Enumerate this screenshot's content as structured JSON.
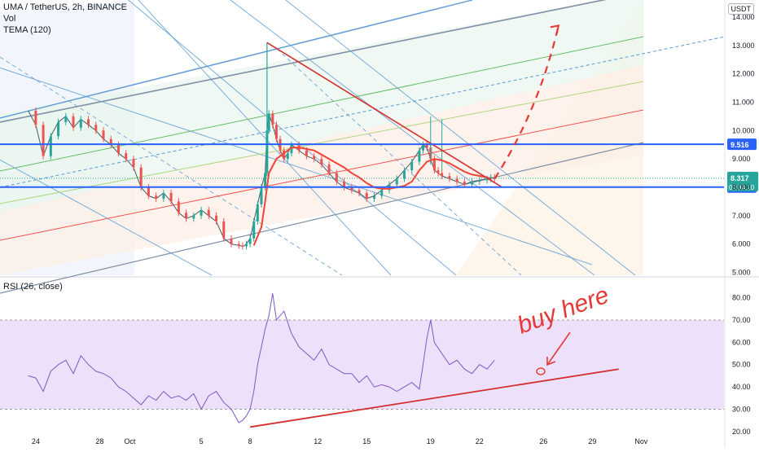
{
  "header": {
    "symbol_line": "UMA / TetherUS, 2h, BINANCE",
    "vol_label": "Vol",
    "indicator_label": "TEMA (120)",
    "currency_badge": "USDT",
    "rsi_label": "RSI (26, close)"
  },
  "annotation": {
    "handwritten_text": "buy here"
  },
  "chart_data": [
    {
      "type": "line",
      "panel": "price",
      "y_axis_ticks": [
        "14.000",
        "13.000",
        "12.000",
        "11.000",
        "10.000",
        "9.000",
        "8.000",
        "7.000",
        "6.000",
        "5.000"
      ],
      "ylim": [
        4.9,
        14.6
      ],
      "x_axis_ticks": [
        {
          "label": "24",
          "t": 2
        },
        {
          "label": "28",
          "t": 19
        },
        {
          "label": "Oct",
          "t": 27
        },
        {
          "label": "5",
          "t": 46
        },
        {
          "label": "8",
          "t": 59
        },
        {
          "label": "12",
          "t": 77
        },
        {
          "label": "15",
          "t": 90
        },
        {
          "label": "19",
          "t": 107
        },
        {
          "label": "22",
          "t": 120
        },
        {
          "label": "26",
          "t": 137
        },
        {
          "label": "29",
          "t": 150
        },
        {
          "label": "Nov",
          "t": 163
        }
      ],
      "xlim": [
        -7.5,
        185
      ],
      "price_series_t": [
        0,
        2,
        4,
        6,
        8,
        10,
        12,
        14,
        16,
        18,
        20,
        22,
        24,
        26,
        28,
        30,
        32,
        34,
        36,
        38,
        40,
        42,
        44,
        46,
        48,
        50,
        52,
        54,
        56,
        57,
        58,
        59,
        60,
        61,
        62,
        63,
        63.5,
        64,
        65,
        66,
        67,
        68,
        69,
        70,
        72,
        74,
        76,
        78,
        80,
        82,
        84,
        86,
        88,
        90,
        92,
        94,
        96,
        98,
        100,
        102,
        104,
        105,
        106,
        107,
        108,
        109,
        110,
        112,
        114,
        116,
        118,
        120,
        122,
        123,
        124
      ],
      "price_series_v": [
        10.7,
        10.2,
        9.1,
        9.8,
        10.3,
        10.5,
        10.1,
        10.4,
        10.2,
        10.0,
        9.7,
        9.5,
        9.2,
        9.0,
        8.7,
        8.0,
        7.7,
        7.6,
        7.8,
        7.5,
        7.1,
        6.9,
        7.0,
        7.2,
        7.0,
        6.8,
        6.2,
        6.0,
        5.95,
        5.92,
        6.0,
        6.2,
        6.8,
        7.4,
        8.0,
        8.5,
        10.0,
        10.6,
        10.2,
        9.7,
        9.3,
        9.0,
        9.2,
        9.5,
        9.3,
        9.1,
        9.0,
        8.8,
        8.5,
        8.2,
        8.0,
        7.9,
        7.8,
        7.6,
        7.7,
        7.9,
        8.1,
        8.3,
        8.6,
        8.9,
        9.3,
        9.5,
        9.4,
        9.0,
        8.6,
        8.5,
        8.4,
        8.3,
        8.2,
        8.1,
        8.2,
        8.25,
        8.3,
        8.35,
        8.3
      ],
      "tema_series_t": [
        60,
        62,
        63,
        64,
        66,
        68,
        70,
        72,
        74,
        76,
        78,
        80,
        82,
        84,
        86,
        88,
        90,
        92,
        94,
        96,
        98,
        100,
        102,
        104,
        106,
        108,
        110,
        112,
        114,
        116,
        118,
        120,
        122,
        123
      ],
      "tema_series_v": [
        5.95,
        6.6,
        7.5,
        8.5,
        9.0,
        9.2,
        9.4,
        9.4,
        9.35,
        9.3,
        9.15,
        9.0,
        8.85,
        8.7,
        8.5,
        8.35,
        8.15,
        8.0,
        7.95,
        7.95,
        8.0,
        8.05,
        8.2,
        8.6,
        8.9,
        9.0,
        8.95,
        8.85,
        8.7,
        8.55,
        8.45,
        8.4,
        8.35,
        8.3
      ],
      "horizontal_levels": [
        {
          "value": 9.516,
          "label": "9.516",
          "color": "#2962ff"
        },
        {
          "value": 8.006,
          "label": "8.006",
          "color": "#2962ff"
        }
      ],
      "last_price": {
        "value": 8.317,
        "label": "8.317",
        "countdown": "01:34:20",
        "color": "#26a69a"
      },
      "projection_arrow": {
        "from": [
          124,
          8.3
        ],
        "to": [
          141,
          13.7
        ]
      }
    },
    {
      "type": "line",
      "panel": "rsi",
      "title": "RSI (26, close)",
      "y_axis_ticks": [
        "80.00",
        "70.00",
        "60.00",
        "50.00",
        "40.00",
        "30.00",
        "20.00"
      ],
      "ylim": [
        17,
        85
      ],
      "band": [
        30,
        70
      ],
      "rsi_series_t": [
        0,
        2,
        4,
        6,
        8,
        10,
        12,
        14,
        16,
        18,
        20,
        22,
        24,
        26,
        28,
        30,
        32,
        34,
        36,
        38,
        40,
        42,
        44,
        46,
        48,
        50,
        52,
        54,
        56,
        57,
        58,
        59,
        60,
        61,
        62,
        63,
        64,
        65,
        66,
        68,
        70,
        72,
        74,
        76,
        78,
        80,
        82,
        84,
        86,
        88,
        90,
        92,
        94,
        96,
        98,
        100,
        102,
        104,
        105,
        106,
        107,
        108,
        110,
        112,
        114,
        116,
        118,
        120,
        122,
        124
      ],
      "rsi_series_v": [
        45,
        44,
        38,
        47,
        50,
        52,
        46,
        54,
        50,
        47,
        46,
        44,
        40,
        38,
        35,
        32,
        36,
        34,
        38,
        35,
        36,
        34,
        37,
        30,
        36,
        38,
        33,
        30,
        24,
        25,
        27,
        30,
        38,
        50,
        58,
        66,
        72,
        82,
        70,
        74,
        64,
        58,
        55,
        52,
        57,
        50,
        48,
        46,
        46,
        42,
        45,
        40,
        41,
        40,
        38,
        40,
        42,
        39,
        50,
        62,
        70,
        60,
        55,
        50,
        52,
        48,
        46,
        50,
        48,
        52
      ],
      "support_line": {
        "from": [
          59,
          22
        ],
        "to": [
          157,
          48
        ]
      }
    }
  ],
  "colors": {
    "trendline_red": "#e53935",
    "level_blue": "#2962ff",
    "tema_red": "#f44336",
    "rsi_purple": "#7e57c2",
    "rsi_band_fill": "#ede0fb",
    "candle_green": "#26a69a",
    "candle_red": "#ef5350"
  }
}
